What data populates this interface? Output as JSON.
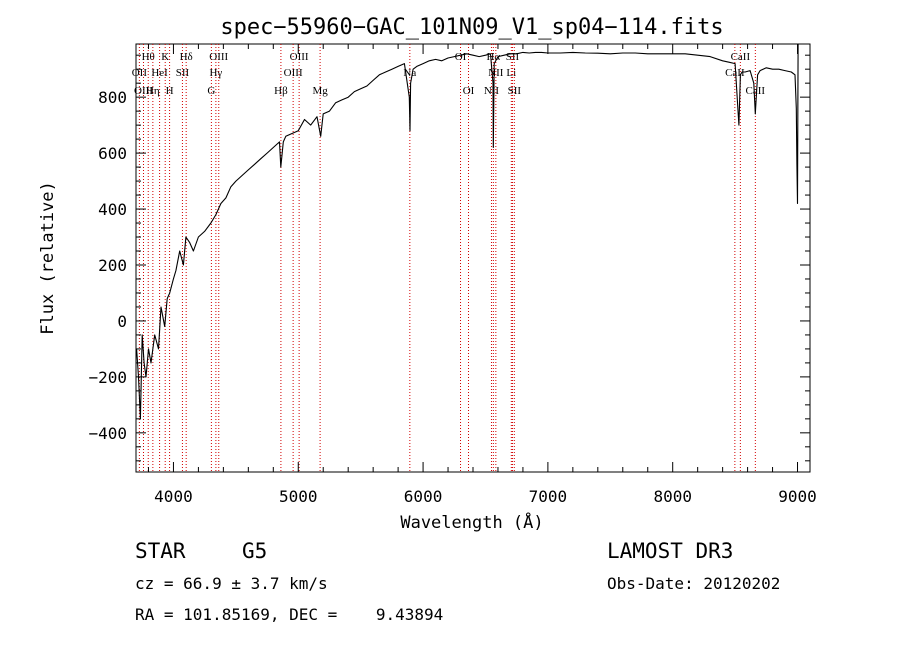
{
  "chart_data": {
    "type": "line",
    "title": "spec−55960−GAC_101N09_V1_sp04−114.fits",
    "xlabel": "Wavelength (Å)",
    "ylabel": "Flux (relative)",
    "xlim": [
      3700,
      9100
    ],
    "ylim": [
      -540,
      990
    ],
    "xticks": [
      4000,
      5000,
      6000,
      7000,
      8000,
      9000
    ],
    "yticks": [
      -400,
      -200,
      0,
      200,
      400,
      600,
      800
    ],
    "xtick_labels": [
      "4000",
      "5000",
      "6000",
      "7000",
      "8000",
      "9000"
    ],
    "ytick_labels": [
      "−400",
      "−200",
      "0",
      "200",
      "400",
      "600",
      "800"
    ],
    "spectrum": {
      "x": [
        3705,
        3720,
        3735,
        3750,
        3765,
        3780,
        3800,
        3820,
        3850,
        3880,
        3900,
        3930,
        3950,
        3970,
        4000,
        4020,
        4050,
        4080,
        4100,
        4130,
        4160,
        4200,
        4250,
        4300,
        4340,
        4380,
        4420,
        4460,
        4500,
        4550,
        4600,
        4650,
        4700,
        4750,
        4800,
        4850,
        4860,
        4880,
        4900,
        4950,
        5000,
        5050,
        5100,
        5150,
        5180,
        5200,
        5250,
        5300,
        5350,
        5400,
        5450,
        5500,
        5550,
        5600,
        5650,
        5700,
        5750,
        5800,
        5850,
        5890,
        5895,
        5900,
        5920,
        5950,
        6000,
        6050,
        6100,
        6150,
        6200,
        6250,
        6300,
        6350,
        6400,
        6450,
        6500,
        6540,
        6560,
        6563,
        6570,
        6600,
        6650,
        6700,
        6750,
        6800,
        6850,
        6900,
        6950,
        7000,
        7100,
        7200,
        7300,
        7400,
        7500,
        7600,
        7700,
        7800,
        7900,
        8000,
        8100,
        8200,
        8300,
        8400,
        8450,
        8500,
        8530,
        8542,
        8555,
        8580,
        8620,
        8650,
        8662,
        8680,
        8700,
        8750,
        8800,
        8850,
        8900,
        8950,
        8980,
        8990,
        8995,
        9000,
        9005
      ],
      "y": [
        -100,
        -200,
        -350,
        -50,
        -150,
        -200,
        -100,
        -150,
        -50,
        -100,
        50,
        -20,
        80,
        100,
        150,
        180,
        250,
        200,
        300,
        280,
        250,
        300,
        320,
        350,
        380,
        420,
        440,
        480,
        500,
        520,
        540,
        560,
        580,
        600,
        620,
        640,
        550,
        640,
        660,
        670,
        680,
        720,
        700,
        730,
        660,
        740,
        750,
        780,
        790,
        800,
        820,
        830,
        840,
        860,
        880,
        890,
        900,
        910,
        920,
        800,
        680,
        850,
        900,
        910,
        920,
        930,
        935,
        930,
        940,
        945,
        950,
        955,
        950,
        945,
        950,
        955,
        850,
        620,
        920,
        945,
        950,
        955,
        955,
        960,
        958,
        960,
        960,
        958,
        958,
        960,
        958,
        957,
        955,
        958,
        958,
        955,
        955,
        955,
        955,
        950,
        945,
        930,
        925,
        920,
        700,
        880,
        890,
        890,
        895,
        850,
        740,
        880,
        895,
        905,
        900,
        900,
        895,
        890,
        880,
        760,
        560,
        420,
        1000
      ]
    },
    "lines": [
      {
        "w": 3727,
        "label": "OII",
        "row": 2
      },
      {
        "w": 3760,
        "label": "OIII",
        "row": 3
      },
      {
        "w": 3798,
        "label": "Hθ",
        "row": 1
      },
      {
        "w": 3835,
        "label": "Hη",
        "row": 3
      },
      {
        "w": 3889,
        "label": "HeI",
        "row": 2
      },
      {
        "w": 3934,
        "label": "K",
        "row": 1
      },
      {
        "w": 3969,
        "label": "H",
        "row": 3
      },
      {
        "w": 4072,
        "label": "SII",
        "row": 2
      },
      {
        "w": 4102,
        "label": "Hδ",
        "row": 1
      },
      {
        "w": 4304,
        "label": "G",
        "row": 3
      },
      {
        "w": 4340,
        "label": "Hγ",
        "row": 2
      },
      {
        "w": 4363,
        "label": "OIII",
        "row": 1
      },
      {
        "w": 4861,
        "label": "Hβ",
        "row": 3
      },
      {
        "w": 4959,
        "label": "OIII",
        "row": 2
      },
      {
        "w": 5007,
        "label": "OIII",
        "row": 1
      },
      {
        "w": 5175,
        "label": "Mg",
        "row": 3
      },
      {
        "w": 5894,
        "label": "Na",
        "row": 2
      },
      {
        "w": 6300,
        "label": "OI",
        "row": 1
      },
      {
        "w": 6364,
        "label": "OI",
        "row": 3
      },
      {
        "w": 6548,
        "label": "NII",
        "row": 3
      },
      {
        "w": 6563,
        "label": "Hα",
        "row": 1
      },
      {
        "w": 6583,
        "label": "NII",
        "row": 2
      },
      {
        "w": 6707,
        "label": "Li",
        "row": 2
      },
      {
        "w": 6716,
        "label": "SII",
        "row": 1
      },
      {
        "w": 6731,
        "label": "SII",
        "row": 3
      },
      {
        "w": 8498,
        "label": "CaII",
        "row": 2
      },
      {
        "w": 8542,
        "label": "CaII",
        "row": 1
      },
      {
        "w": 8662,
        "label": "CaII",
        "row": 3
      }
    ]
  },
  "info": {
    "class_label": "STAR",
    "subclass": "G5",
    "survey": "LAMOST DR3",
    "cz": "cz = 66.9 ± 3.7 km/s",
    "obs_date": "Obs-Date: 20120202",
    "coords": "RA = 101.85169, DEC =    9.43894"
  }
}
